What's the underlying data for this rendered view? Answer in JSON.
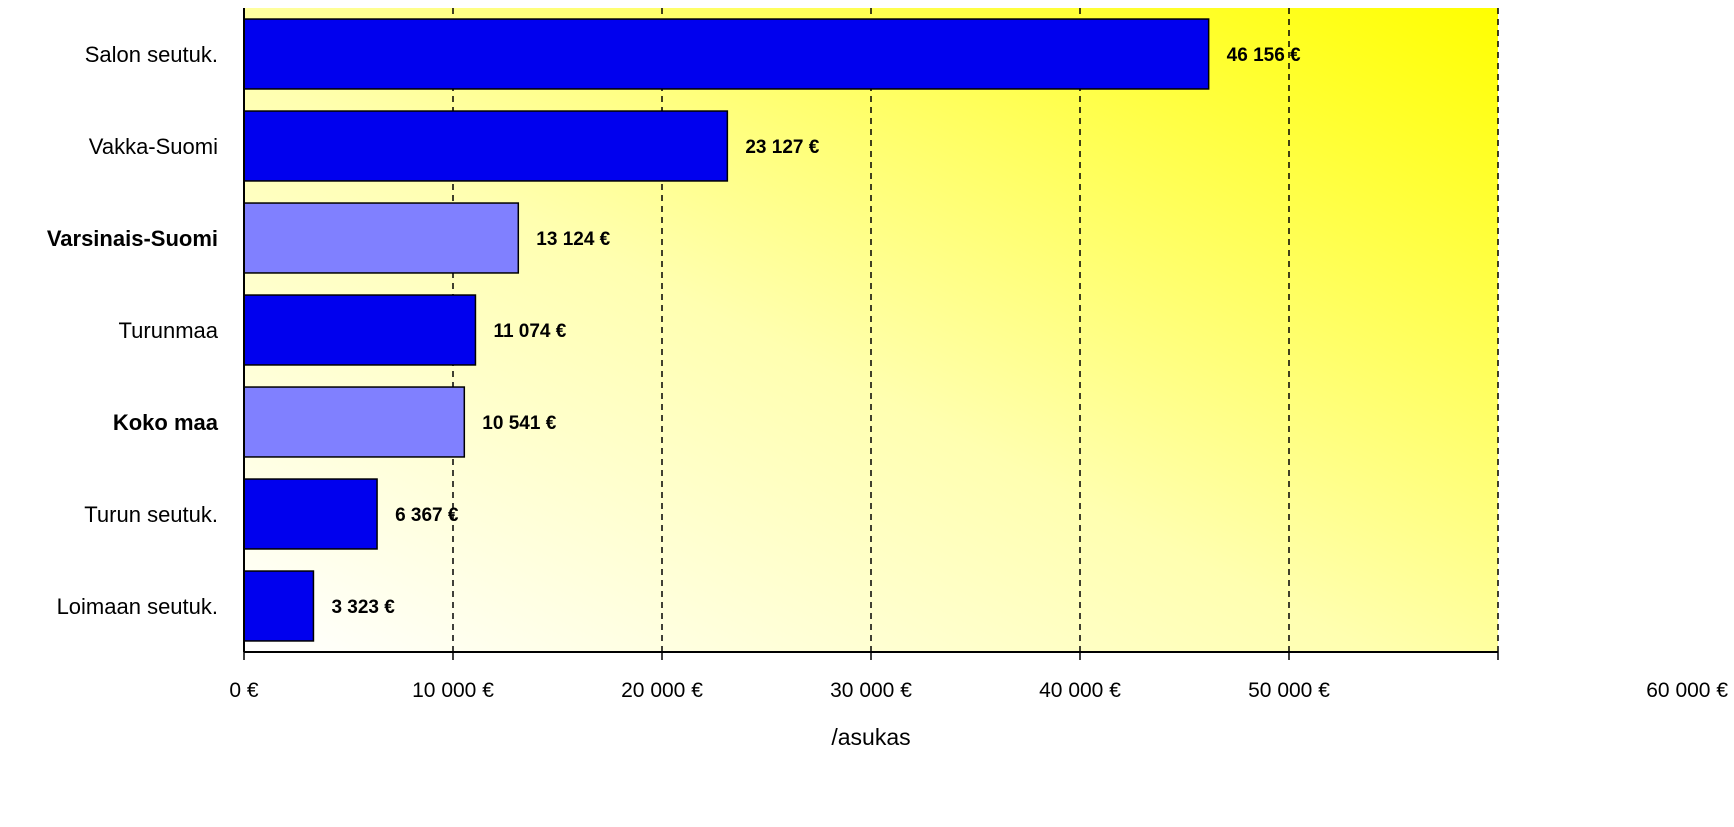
{
  "chart_data": {
    "type": "bar",
    "orientation": "horizontal",
    "categories": [
      "Salon seutuk.",
      "Vakka-Suomi",
      "Varsinais-Suomi",
      "Turunmaa",
      "Koko maa",
      "Turun seutuk.",
      "Loimaan seutuk."
    ],
    "values": [
      46156,
      23127,
      13124,
      11074,
      10541,
      6367,
      3323
    ],
    "value_labels": [
      "46 156 €",
      "23 127 €",
      "13 124 €",
      "11 074 €",
      "10 541 €",
      "6 367 €",
      "3 323 €"
    ],
    "highlighted": [
      false,
      false,
      true,
      false,
      true,
      false,
      false
    ],
    "xlabel": "/asukas",
    "ylabel": "",
    "title": "",
    "xlim": [
      0,
      60000
    ],
    "x_ticks": [
      0,
      10000,
      20000,
      30000,
      40000,
      50000,
      60000
    ],
    "x_tick_labels": [
      "0 €",
      "10 000 €",
      "20 000 €",
      "30 000 €",
      "40 000 €",
      "50 000 €",
      "60 000 €"
    ],
    "grid": "vertical dashed",
    "colors": {
      "bar": "#0000ee",
      "bar_highlight": "#8080ff",
      "bar_stroke": "#000000",
      "background_top_right": "#ffff00",
      "background_bottom_left": "#ffffff"
    }
  }
}
